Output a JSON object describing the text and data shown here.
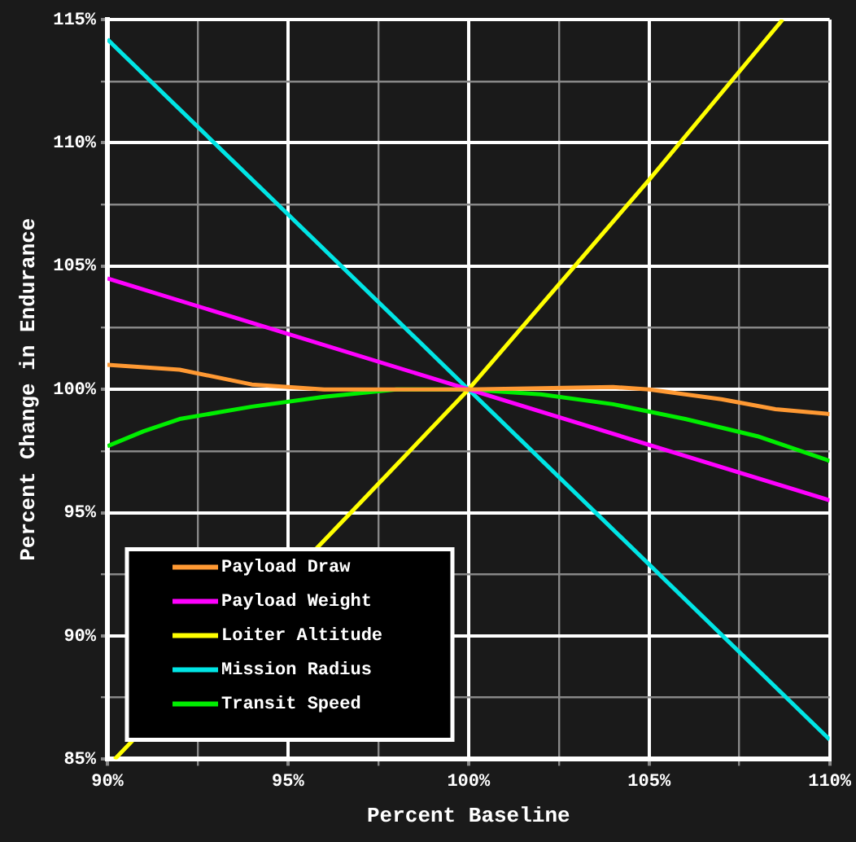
{
  "chart_data": {
    "type": "line",
    "xlabel": "Percent Baseline",
    "ylabel": "Percent Change in Endurance",
    "xlim": [
      90,
      110
    ],
    "xticks": [
      {
        "value": 90,
        "label": "90%"
      },
      {
        "value": 92.5,
        "label": null
      },
      {
        "value": 95,
        "label": "95%"
      },
      {
        "value": 97.5,
        "label": null
      },
      {
        "value": 100,
        "label": "100%"
      },
      {
        "value": 102.5,
        "label": null
      },
      {
        "value": 105,
        "label": "105%"
      },
      {
        "value": 107.5,
        "label": null
      },
      {
        "value": 110,
        "label": "110%"
      }
    ],
    "ylim": [
      85,
      115
    ],
    "yticks": [
      {
        "value": 85,
        "label": "85%"
      },
      {
        "value": 87.5,
        "label": null
      },
      {
        "value": 90,
        "label": "90%"
      },
      {
        "value": 92.5,
        "label": null
      },
      {
        "value": 95,
        "label": "95%"
      },
      {
        "value": 97.5,
        "label": null
      },
      {
        "value": 100,
        "label": "100%"
      },
      {
        "value": 102.5,
        "label": null
      },
      {
        "value": 105,
        "label": "105%"
      },
      {
        "value": 107.5,
        "label": null
      },
      {
        "value": 110,
        "label": "110%"
      },
      {
        "value": 112.5,
        "label": null
      },
      {
        "value": 115,
        "label": "115%"
      }
    ],
    "grid": true,
    "legend": "bottom left",
    "marker": "none",
    "line_style": "solid",
    "series": [
      {
        "name": "Payload Draw",
        "color": "#ff9933",
        "x": [
          90,
          92,
          94,
          96,
          98,
          100,
          102,
          104,
          105,
          107,
          108.5,
          110
        ],
        "values": [
          101,
          100.8,
          100.2,
          100,
          100,
          100,
          100.05,
          100.1,
          100,
          99.6,
          99.2,
          99
        ]
      },
      {
        "name": "Payload Weight",
        "color": "#ff00ff",
        "x": [
          90,
          100,
          110
        ],
        "values": [
          104.5,
          100,
          95.5
        ]
      },
      {
        "name": "Loiter Altitude",
        "color": "#ffff00",
        "x": [
          90.2,
          97,
          100,
          105,
          108.7
        ],
        "values": [
          85,
          95.4,
          100,
          108.5,
          115
        ]
      },
      {
        "name": "Mission Radius",
        "color": "#00e5e5",
        "x": [
          90,
          100,
          110
        ],
        "values": [
          114.2,
          100,
          85.8
        ]
      },
      {
        "name": "Transit Speed",
        "color": "#00ee00",
        "x": [
          90,
          91,
          92,
          94,
          96,
          98,
          100,
          102,
          104,
          106,
          108,
          110
        ],
        "values": [
          97.7,
          98.3,
          98.8,
          99.3,
          99.7,
          100,
          100,
          99.8,
          99.4,
          98.8,
          98.1,
          97.1
        ]
      }
    ]
  }
}
